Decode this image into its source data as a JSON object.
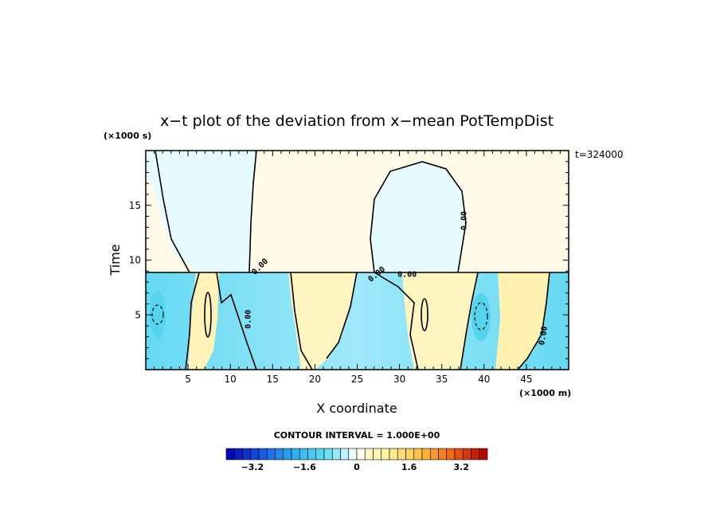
{
  "chart_data": {
    "type": "heatmap",
    "title": "x−t plot of the deviation from x−mean PotTempDist",
    "xlabel": "X coordinate",
    "ylabel": "Time",
    "x_unit": "(×1000 m)",
    "y_unit": "(×1000 s)",
    "time_label": "t=324000",
    "xlim": [
      0,
      50
    ],
    "ylim": [
      0,
      20
    ],
    "x_ticks": [
      5,
      10,
      15,
      20,
      25,
      30,
      35,
      40,
      45
    ],
    "y_ticks": [
      5,
      10,
      15
    ],
    "contour_labels": [
      "0.00",
      "0.00",
      "0.00",
      "0.00",
      "0.00",
      "0.00"
    ],
    "contour_interval_text": "CONTOUR INTERVAL = 1.000E+00",
    "colorbar": {
      "min": -4,
      "max": 4,
      "tick_values": [
        -3.2,
        -1.6,
        0,
        1.6,
        3.2
      ],
      "tick_labels": [
        "−3.2",
        "−1.6",
        "0",
        "1.6",
        "3.2"
      ]
    },
    "regions": [
      {
        "desc": "upper-left cool column",
        "value": -0.3
      },
      {
        "desc": "upper background",
        "value": 0.2
      },
      {
        "desc": "upper dome near x=30",
        "value": -0.3
      },
      {
        "desc": "lower band",
        "value": -0.8
      },
      {
        "desc": "warm columns",
        "value": 0.5
      }
    ],
    "colors": {
      "neg_deep": "#0000a0",
      "neg_mid": "#40c8f0",
      "neg_light": "#c8f4ff",
      "zero": "#ffffff",
      "pos_light": "#fff8c8",
      "pos_mid": "#ffc040",
      "pos_deep": "#b00000",
      "upper_warm": "#fffbe8",
      "upper_cool": "#e8fbff"
    }
  }
}
